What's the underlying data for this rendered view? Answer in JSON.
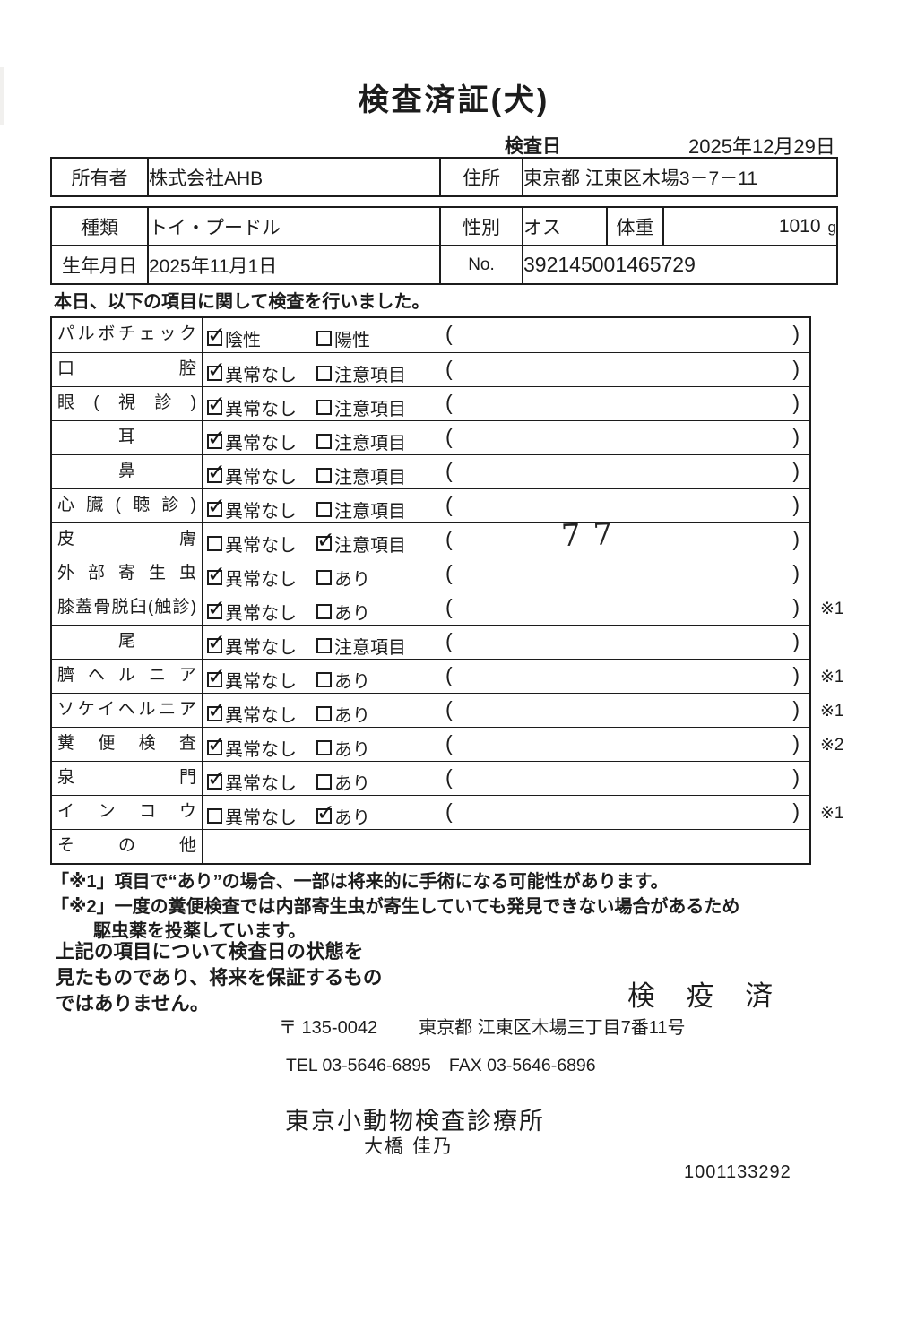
{
  "title": "検査済証(犬)",
  "inspection": {
    "label": "検査日",
    "value": "2025年12月29日"
  },
  "owner": {
    "owner_label": "所有者",
    "owner_value": "株式会社AHB",
    "address_label": "住所",
    "address_value": "東京都 江東区木場3－7－11"
  },
  "pet": {
    "breed_label": "種類",
    "breed_value": "トイ・プードル",
    "sex_label": "性別",
    "sex_value": "オス",
    "weight_label": "体重",
    "weight_value": "1010",
    "weight_unit": "g",
    "birth_label": "生年月日",
    "birth_value": "2025年11月1日",
    "no_label": "No.",
    "no_value": "392145001465729"
  },
  "intro": "本日、以下の項目に関して検査を行いました。",
  "exam": {
    "rows": [
      {
        "label": "パルボチェック",
        "align": "justify",
        "opt1": "陰性",
        "opt2": "陽性",
        "checked": "opt1",
        "paren": true,
        "hand": "",
        "ref": ""
      },
      {
        "label": "口腔",
        "align": "justify",
        "opt1": "異常なし",
        "opt2": "注意項目",
        "checked": "opt1",
        "paren": true,
        "hand": "",
        "ref": ""
      },
      {
        "label": "眼(視診)",
        "align": "justify",
        "opt1": "異常なし",
        "opt2": "注意項目",
        "checked": "opt1",
        "paren": true,
        "hand": "",
        "ref": ""
      },
      {
        "label": "耳",
        "align": "center",
        "opt1": "異常なし",
        "opt2": "注意項目",
        "checked": "opt1",
        "paren": true,
        "hand": "",
        "ref": ""
      },
      {
        "label": "鼻",
        "align": "center",
        "opt1": "異常なし",
        "opt2": "注意項目",
        "checked": "opt1",
        "paren": true,
        "hand": "",
        "ref": ""
      },
      {
        "label": "心臓(聴診)",
        "align": "justify",
        "opt1": "異常なし",
        "opt2": "注意項目",
        "checked": "opt1",
        "paren": true,
        "hand": "",
        "ref": ""
      },
      {
        "label": "皮膚",
        "align": "justify",
        "opt1": "異常なし",
        "opt2": "注意項目",
        "checked": "opt2",
        "paren": true,
        "hand": "77",
        "ref": ""
      },
      {
        "label": "外部寄生虫",
        "align": "justify",
        "opt1": "異常なし",
        "opt2": "あり",
        "checked": "opt1",
        "paren": true,
        "hand": "",
        "ref": ""
      },
      {
        "label": "膝蓋骨脱臼(触診)",
        "align": "justify",
        "opt1": "異常なし",
        "opt2": "あり",
        "checked": "opt1",
        "paren": true,
        "hand": "",
        "ref": "※1"
      },
      {
        "label": "尾",
        "align": "center",
        "opt1": "異常なし",
        "opt2": "注意項目",
        "checked": "opt1",
        "paren": true,
        "hand": "",
        "ref": ""
      },
      {
        "label": "臍ヘルニア",
        "align": "justify",
        "opt1": "異常なし",
        "opt2": "あり",
        "checked": "opt1",
        "paren": true,
        "hand": "",
        "ref": "※1"
      },
      {
        "label": "ソケイヘルニア",
        "align": "justify",
        "opt1": "異常なし",
        "opt2": "あり",
        "checked": "opt1",
        "paren": true,
        "hand": "",
        "ref": "※1"
      },
      {
        "label": "糞便検査",
        "align": "justify",
        "opt1": "異常なし",
        "opt2": "あり",
        "checked": "opt1",
        "paren": true,
        "hand": "",
        "ref": "※2"
      },
      {
        "label": "泉門",
        "align": "justify",
        "opt1": "異常なし",
        "opt2": "あり",
        "checked": "opt1",
        "paren": true,
        "hand": "",
        "ref": ""
      },
      {
        "label": "インコウ",
        "align": "justify",
        "opt1": "異常なし",
        "opt2": "あり",
        "checked": "opt2",
        "paren": true,
        "hand": "",
        "ref": "※1"
      },
      {
        "label": "その他",
        "align": "justify",
        "opt1": "",
        "opt2": "",
        "checked": "",
        "paren": false,
        "hand": "",
        "ref": ""
      }
    ]
  },
  "footnotes": {
    "line1": "「※1」項目で“あり”の場合、一部は将来的に手術になる可能性があります。",
    "line2": "「※2」一度の糞便検査では内部寄生虫が寄生していても発見できない場合があるため",
    "line3": "駆虫薬を投薬しています。"
  },
  "disclaimer": [
    "上記の項目について検査日の状態を",
    "見たものであり、将来を保証するもの",
    "ではありません。"
  ],
  "stamp": "検 疫 済",
  "clinic": {
    "postal": "〒 135-0042",
    "address": "東京都 江東区木場三丁目7番11号",
    "tel": "TEL 03-5646-6895",
    "fax": "FAX 03-5646-6896",
    "name": "東京小動物検査診療所",
    "vet": "大橋 佳乃"
  },
  "document_number": "1001133292"
}
